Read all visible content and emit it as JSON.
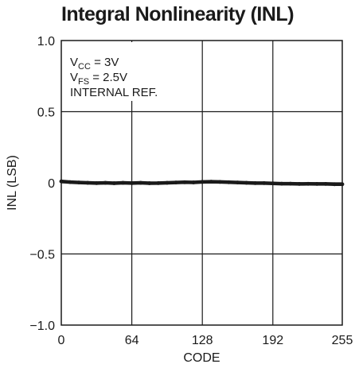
{
  "chart_data": {
    "type": "line",
    "title": "Integral Nonlinearity (INL)",
    "xlabel": "CODE",
    "ylabel": "INL (LSB)",
    "xlim": [
      0,
      255
    ],
    "ylim": [
      -1.0,
      1.0
    ],
    "x_ticks": [
      0,
      64,
      128,
      192,
      255
    ],
    "x_tick_labels": [
      "0",
      "64",
      "128",
      "192",
      "255"
    ],
    "y_ticks": [
      1.0,
      0.5,
      0,
      -0.5,
      -1.0
    ],
    "y_tick_labels": [
      "1.0",
      "0.5",
      "0",
      "−0.5",
      "−1.0"
    ],
    "grid": true,
    "annotations": {
      "vcc": {
        "main": "V",
        "sub": "CC",
        "rest": " = 3V"
      },
      "vfs": {
        "main": "V",
        "sub": "FS",
        "rest": " = 2.5V"
      },
      "ref": "INTERNAL REF."
    },
    "series": [
      {
        "x": [
          0,
          8,
          16,
          24,
          32,
          40,
          48,
          56,
          64,
          72,
          80,
          88,
          96,
          104,
          112,
          120,
          128,
          136,
          144,
          152,
          160,
          168,
          176,
          184,
          192,
          200,
          208,
          216,
          224,
          232,
          240,
          248,
          255
        ],
        "values": [
          0.01,
          0.005,
          0.002,
          0.0,
          -0.002,
          0.0,
          -0.003,
          0.0,
          -0.002,
          0.0,
          -0.003,
          -0.002,
          0.0,
          0.002,
          0.004,
          0.003,
          0.006,
          0.008,
          0.006,
          0.004,
          0.002,
          0.0,
          -0.002,
          -0.002,
          -0.004,
          -0.006,
          -0.006,
          -0.008,
          -0.007,
          -0.008,
          -0.008,
          -0.01,
          -0.01
        ]
      }
    ],
    "line_color": "#1a1a1a"
  }
}
